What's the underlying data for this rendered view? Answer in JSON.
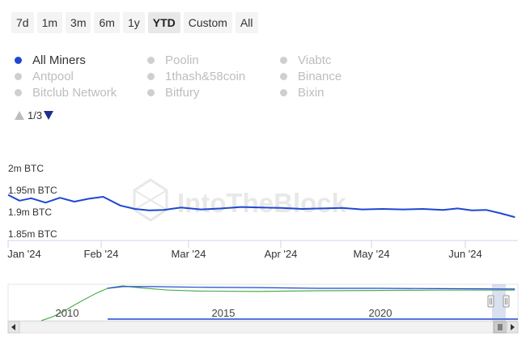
{
  "range_selector": {
    "buttons": [
      "7d",
      "1m",
      "3m",
      "6m",
      "1y",
      "YTD",
      "Custom",
      "All"
    ],
    "active": "YTD"
  },
  "legend": {
    "items": [
      {
        "label": "All Miners",
        "active": true
      },
      {
        "label": "Antpool",
        "active": false
      },
      {
        "label": "Bitclub Network",
        "active": false
      },
      {
        "label": "Poolin",
        "active": false
      },
      {
        "label": "1thash&58coin",
        "active": false
      },
      {
        "label": "Bitfury",
        "active": false
      },
      {
        "label": "Viabtc",
        "active": false
      },
      {
        "label": "Binance",
        "active": false
      },
      {
        "label": "Bixin",
        "active": false
      }
    ],
    "pager": "1/3"
  },
  "watermark": "IntoTheBlock",
  "colors": {
    "series": "#1f48d1",
    "navigator_green": "#4caf50",
    "inactive": "#cfcfcf"
  },
  "chart_data": {
    "type": "line",
    "series": [
      {
        "name": "All Miners",
        "x": [
          "2024-01-01",
          "2024-01-05",
          "2024-01-09",
          "2024-01-14",
          "2024-01-19",
          "2024-01-24",
          "2024-01-29",
          "2024-02-03",
          "2024-02-09",
          "2024-02-14",
          "2024-02-19",
          "2024-02-24",
          "2024-03-01",
          "2024-03-08",
          "2024-03-15",
          "2024-03-22",
          "2024-03-29",
          "2024-04-05",
          "2024-04-12",
          "2024-04-19",
          "2024-04-26",
          "2024-05-03",
          "2024-05-10",
          "2024-05-17",
          "2024-05-24",
          "2024-05-31",
          "2024-06-05",
          "2024-06-10",
          "2024-06-15",
          "2024-06-20",
          "2024-06-25"
        ],
        "values": [
          1.944,
          1.932,
          1.937,
          1.928,
          1.938,
          1.93,
          1.936,
          1.94,
          1.922,
          1.915,
          1.912,
          1.913,
          1.918,
          1.914,
          1.916,
          1.919,
          1.918,
          1.917,
          1.915,
          1.916,
          1.917,
          1.914,
          1.915,
          1.914,
          1.915,
          1.913,
          1.916,
          1.912,
          1.913,
          1.906,
          1.898
        ]
      }
    ],
    "y_ticks": [
      "2m BTC",
      "1.95m BTC",
      "1.9m BTC",
      "1.85m BTC"
    ],
    "x_ticks": [
      "Jan '24",
      "Feb '24",
      "Mar '24",
      "Apr '24",
      "May '24",
      "Jun '24"
    ],
    "ylim": [
      1.85,
      2.0
    ],
    "grid": false,
    "navigator": {
      "x_ticks": [
        "2010",
        "2015",
        "2020"
      ],
      "series": [
        {
          "name": "",
          "color": "green",
          "x": [
            2008.8,
            2009.2,
            2009.6,
            2010.1,
            2010.6,
            2011.0,
            2011.5,
            2012.0,
            2013.0,
            2014.0,
            2016.0,
            2018.0,
            2020.0,
            2022.0,
            2024.5
          ],
          "values": [
            0.0,
            0.12,
            0.3,
            0.55,
            0.78,
            0.93,
            1.0,
            0.95,
            0.88,
            0.85,
            0.84,
            0.86,
            0.87,
            0.88,
            0.88
          ]
        },
        {
          "name": "",
          "color": "blue",
          "x": [
            2011.0,
            2011.5,
            2012.5,
            2014.0,
            2016.0,
            2018.0,
            2020.0,
            2022.0,
            2024.5
          ],
          "values": [
            0.93,
            0.98,
            0.98,
            0.96,
            0.95,
            0.93,
            0.93,
            0.92,
            0.91
          ]
        }
      ]
    }
  }
}
